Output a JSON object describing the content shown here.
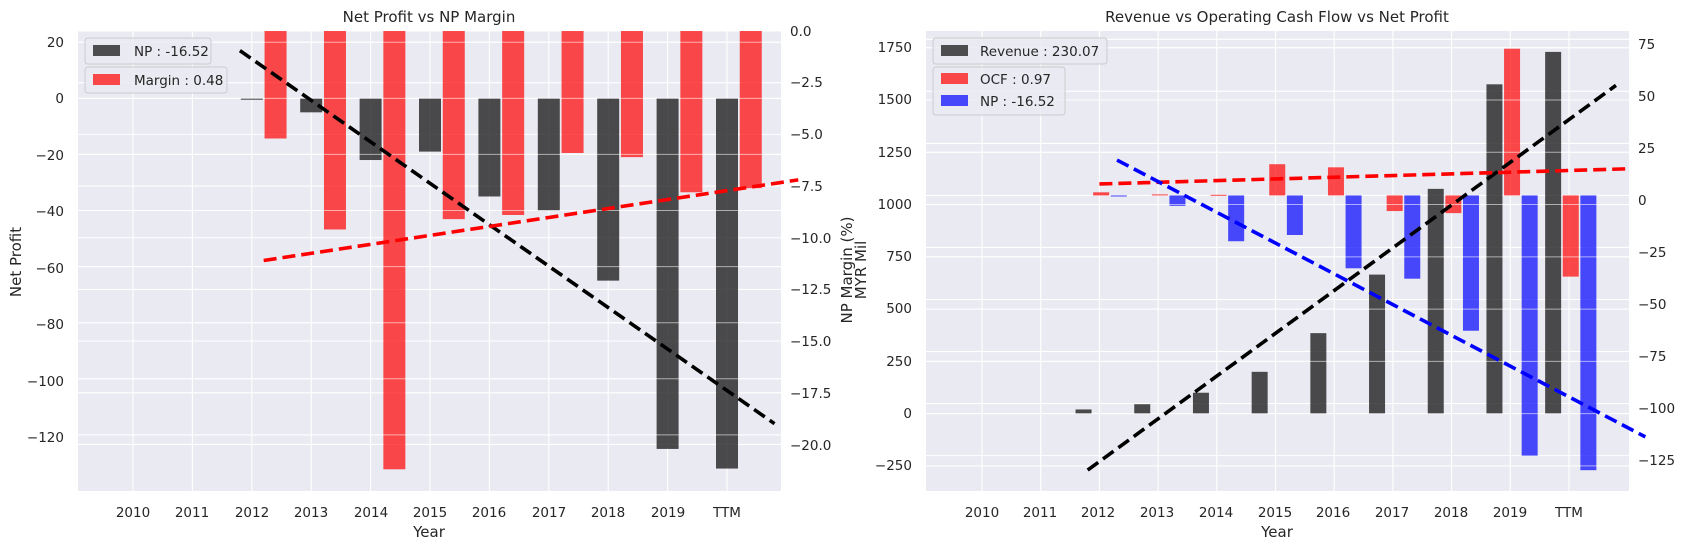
{
  "colors": {
    "background": "#eaeaf2",
    "grid": "#ffffff",
    "dark": "#262626",
    "red": "#ff0000",
    "blue": "#0000ff",
    "black": "#000000"
  },
  "chart_data": [
    {
      "type": "bar",
      "title": "Net Profit vs NP Margin",
      "xlabel": "Year",
      "ylabel": "Net Profit",
      "y2label": "NP Margin (%)",
      "categories": [
        "2010",
        "2011",
        "2012",
        "2013",
        "2014",
        "2015",
        "2016",
        "2017",
        "2018",
        "2019",
        "TTM"
      ],
      "ylim": [
        -140,
        24
      ],
      "y2lim": [
        -22.25,
        0
      ],
      "yticks": [
        "20",
        "0",
        "−20",
        "−40",
        "−60",
        "−80",
        "−100",
        "−120"
      ],
      "y2ticks": [
        "0.0",
        "−2.5",
        "−5.0",
        "−7.5",
        "−10.0",
        "−12.5",
        "−15.0",
        "−17.5",
        "−20.0"
      ],
      "grid": true,
      "legend_position": "top-left",
      "series": [
        {
          "name": "NP",
          "legend": "NP : -16.52",
          "axis": "left",
          "color": "#262626",
          "values": [
            null,
            null,
            -0.5,
            -5,
            -22,
            -19,
            -35,
            -40,
            -65,
            -125,
            -132
          ]
        },
        {
          "name": "Margin",
          "legend": "Margin : 0.48",
          "axis": "right",
          "color": "#ff0000",
          "values": [
            null,
            null,
            -5.2,
            -9.6,
            -21.2,
            -9.1,
            -8.9,
            -5.9,
            -6.1,
            -7.8,
            -7.6
          ]
        }
      ],
      "trendlines": [
        {
          "axis": "left",
          "color": "#000000",
          "from": [
            2011.8,
            17
          ],
          "to": [
            2020.8,
            -116
          ]
        },
        {
          "axis": "right",
          "color": "#ff0000",
          "from": [
            2012.2,
            -11.1
          ],
          "to": [
            2021.2,
            -7.2
          ]
        }
      ]
    },
    {
      "type": "bar",
      "title": "Revenue vs Operating Cash Flow vs Net Profit",
      "xlabel": "Year",
      "ylabel": "MYR Mil",
      "categories": [
        "2010",
        "2011",
        "2012",
        "2013",
        "2014",
        "2015",
        "2016",
        "2017",
        "2018",
        "2019",
        "TTM"
      ],
      "ylim": [
        -370,
        1830
      ],
      "y2lim": [
        -142,
        79
      ],
      "yticks": [
        "1750",
        "1500",
        "1250",
        "1000",
        "750",
        "500",
        "250",
        "0",
        "−250"
      ],
      "y2ticks": [
        "75",
        "50",
        "25",
        "0",
        "−25",
        "−50",
        "−75",
        "−100",
        "−125"
      ],
      "grid": true,
      "legend_position": "top-left",
      "series": [
        {
          "name": "Revenue",
          "legend": "Revenue : 230.07",
          "axis": "left",
          "color": "#262626",
          "values": [
            null,
            null,
            20,
            45,
            100,
            200,
            385,
            665,
            1075,
            1575,
            1730
          ]
        },
        {
          "name": "OCF",
          "legend": "OCF : 0.97",
          "axis": "right",
          "color": "#ff0000",
          "values": [
            null,
            null,
            1.5,
            0.5,
            0.3,
            15,
            13.5,
            -7.5,
            -8.5,
            70.5,
            -39
          ]
        },
        {
          "name": "NP",
          "legend": "NP : -16.52",
          "axis": "right",
          "color": "#0000ff",
          "values": [
            null,
            null,
            -0.5,
            -5,
            -22,
            -19,
            -35,
            -40,
            -65,
            -125,
            -132
          ]
        }
      ],
      "trendlines": [
        {
          "axis": "left",
          "color": "#000000",
          "from": [
            2011.8,
            -270
          ],
          "to": [
            2020.8,
            1570
          ]
        },
        {
          "axis": "right",
          "color": "#ff0000",
          "from": [
            2012,
            5.5
          ],
          "to": [
            2021,
            12.8
          ]
        },
        {
          "axis": "right",
          "color": "#0000ff",
          "from": [
            2012.3,
            17
          ],
          "to": [
            2021.3,
            -116
          ]
        }
      ]
    }
  ]
}
